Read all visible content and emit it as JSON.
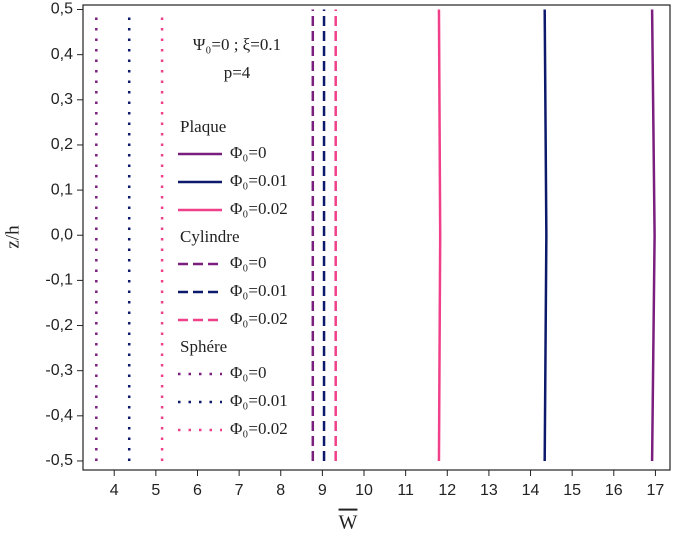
{
  "chart_data": {
    "type": "line",
    "xlabel": "W",
    "ylabel": "z/h",
    "annotations": [
      "Ψ₀=0 ; ξ=0.1",
      "p=4"
    ],
    "xlim": [
      3.25,
      17.35
    ],
    "ylim": [
      -0.52,
      0.51
    ],
    "xticks": [
      4,
      5,
      6,
      7,
      8,
      9,
      10,
      11,
      12,
      13,
      14,
      15,
      16,
      17
    ],
    "yticks": [
      {
        "value": -0.5,
        "label": "-0,5"
      },
      {
        "value": -0.4,
        "label": "-0,4"
      },
      {
        "value": -0.3,
        "label": "-0,3"
      },
      {
        "value": -0.2,
        "label": "-0,2"
      },
      {
        "value": -0.1,
        "label": "-0,1"
      },
      {
        "value": 0,
        "label": "0,0"
      },
      {
        "value": 0.1,
        "label": "0,1"
      },
      {
        "value": 0.2,
        "label": "0,2"
      },
      {
        "value": 0.3,
        "label": "0,3"
      },
      {
        "value": 0.4,
        "label": "0,4"
      },
      {
        "value": 0.5,
        "label": "0,5"
      }
    ],
    "legend_groups": [
      {
        "title": "Plaque",
        "style": "solid"
      },
      {
        "title": "Cylindre",
        "style": "dashed"
      },
      {
        "title": "Sphére",
        "style": "dotted"
      }
    ],
    "series": [
      {
        "name": "Φ₀=0",
        "group": 0,
        "color": "#7b1f7f",
        "x": [
          16.92,
          16.98,
          16.92
        ],
        "y": [
          -0.5,
          0,
          0.5
        ]
      },
      {
        "name": "Φ₀=0.01",
        "group": 0,
        "color": "#0d1a6b",
        "x": [
          14.34,
          14.38,
          14.34
        ],
        "y": [
          -0.5,
          0,
          0.5
        ]
      },
      {
        "name": "Φ₀=0.02",
        "group": 0,
        "color": "#f0408a",
        "x": [
          11.8,
          11.83,
          11.8
        ],
        "y": [
          -0.5,
          0,
          0.5
        ]
      },
      {
        "name": "Φ₀=0",
        "group": 1,
        "color": "#7b1f7f",
        "x": [
          8.77,
          8.77,
          8.77
        ],
        "y": [
          -0.5,
          0,
          0.5
        ]
      },
      {
        "name": "Φ₀=0.01",
        "group": 1,
        "color": "#0d1a6b",
        "x": [
          9.04,
          9.04,
          9.04
        ],
        "y": [
          -0.5,
          0,
          0.5
        ]
      },
      {
        "name": "Φ₀=0.02",
        "group": 1,
        "color": "#f0408a",
        "x": [
          9.32,
          9.32,
          9.32
        ],
        "y": [
          -0.5,
          0,
          0.5
        ]
      },
      {
        "name": "Φ₀=0",
        "group": 2,
        "color": "#7b1f7f",
        "x": [
          3.57,
          3.57,
          3.57
        ],
        "y": [
          -0.5,
          0,
          0.5
        ]
      },
      {
        "name": "Φ₀=0.01",
        "group": 2,
        "color": "#0d1a6b",
        "x": [
          4.36,
          4.36,
          4.36
        ],
        "y": [
          -0.5,
          0,
          0.5
        ]
      },
      {
        "name": "Φ₀=0.02",
        "group": 2,
        "color": "#f0408a",
        "x": [
          5.15,
          5.15,
          5.15
        ],
        "y": [
          -0.5,
          0,
          0.5
        ]
      }
    ]
  }
}
